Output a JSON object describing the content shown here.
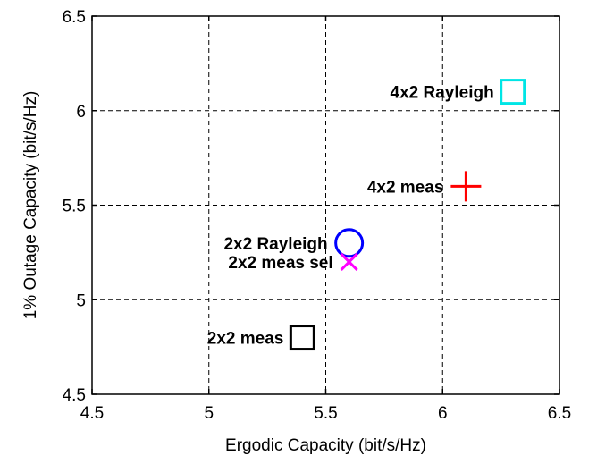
{
  "chart_data": {
    "type": "scatter",
    "title": "",
    "xlabel": "Ergodic Capacity (bit/s/Hz)",
    "ylabel": "1% Outage Capacity (bit/s/Hz)",
    "xlim": [
      4.5,
      6.5
    ],
    "ylim": [
      4.5,
      6.5
    ],
    "xticks": [
      "4.5",
      "5",
      "5.5",
      "6",
      "6.5"
    ],
    "yticks": [
      "4.5",
      "5",
      "5.5",
      "6",
      "6.5"
    ],
    "grid": true,
    "points": [
      {
        "label": "4x2 Rayleigh",
        "x": 6.3,
        "y": 6.1,
        "marker": "square",
        "color": "#00e5e5"
      },
      {
        "label": "4x2 meas",
        "x": 6.1,
        "y": 5.6,
        "marker": "plus",
        "color": "#ff0000"
      },
      {
        "label": "2x2 Rayleigh",
        "x": 5.6,
        "y": 5.3,
        "marker": "circle",
        "color": "#0000ff"
      },
      {
        "label": "2x2 meas sel",
        "x": 5.6,
        "y": 5.2,
        "marker": "x",
        "color": "#ff00ff"
      },
      {
        "label": "2x2 meas",
        "x": 5.4,
        "y": 4.8,
        "marker": "square",
        "color": "#000000"
      }
    ]
  }
}
